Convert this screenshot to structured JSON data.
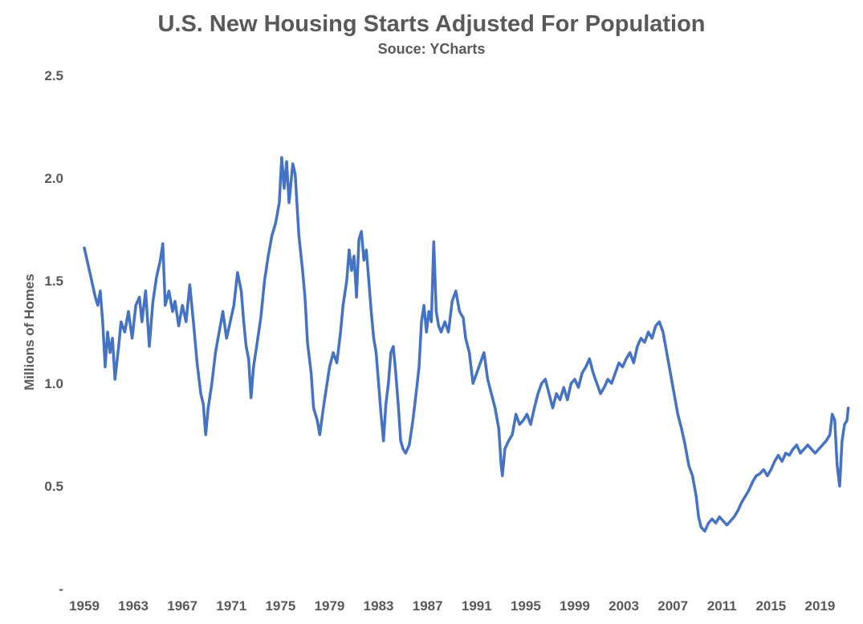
{
  "chart_data": {
    "type": "line",
    "title": "U.S. New Housing Starts Adjusted For Population",
    "subtitle": "Souce: YCharts",
    "xlabel": "",
    "ylabel": "Millions of Homes",
    "ylim": [
      0,
      2.5
    ],
    "xlim": [
      1959,
      2021
    ],
    "y_ticks": [
      0,
      0.5,
      1.0,
      1.5,
      2.0,
      2.5
    ],
    "y_tick_labels": [
      "-",
      "0.5",
      "1.0",
      "1.5",
      "2.0",
      "2.5"
    ],
    "x_ticks": [
      1959,
      1963,
      1967,
      1971,
      1975,
      1979,
      1983,
      1987,
      1991,
      1995,
      1999,
      2003,
      2007,
      2011,
      2015,
      2019
    ],
    "x_tick_labels": [
      "1959",
      "1963",
      "1967",
      "1971",
      "1975",
      "1979",
      "1983",
      "1987",
      "1991",
      "1995",
      "1999",
      "2003",
      "2007",
      "2011",
      "2015",
      "2019"
    ],
    "grid": false,
    "legend": "none",
    "color": "#4472C4",
    "series": [
      {
        "name": "",
        "points": [
          [
            1959.0,
            1.66
          ],
          [
            1959.3,
            1.58
          ],
          [
            1959.6,
            1.5
          ],
          [
            1959.9,
            1.42
          ],
          [
            1960.1,
            1.38
          ],
          [
            1960.3,
            1.45
          ],
          [
            1960.5,
            1.3
          ],
          [
            1960.7,
            1.08
          ],
          [
            1960.9,
            1.25
          ],
          [
            1961.1,
            1.15
          ],
          [
            1961.3,
            1.22
          ],
          [
            1961.5,
            1.02
          ],
          [
            1961.8,
            1.18
          ],
          [
            1962.0,
            1.3
          ],
          [
            1962.3,
            1.25
          ],
          [
            1962.6,
            1.35
          ],
          [
            1962.9,
            1.22
          ],
          [
            1963.2,
            1.38
          ],
          [
            1963.5,
            1.42
          ],
          [
            1963.7,
            1.3
          ],
          [
            1964.0,
            1.45
          ],
          [
            1964.3,
            1.18
          ],
          [
            1964.6,
            1.4
          ],
          [
            1964.9,
            1.52
          ],
          [
            1965.2,
            1.6
          ],
          [
            1965.4,
            1.68
          ],
          [
            1965.6,
            1.38
          ],
          [
            1965.9,
            1.45
          ],
          [
            1966.2,
            1.35
          ],
          [
            1966.4,
            1.4
          ],
          [
            1966.7,
            1.28
          ],
          [
            1967.0,
            1.38
          ],
          [
            1967.3,
            1.3
          ],
          [
            1967.6,
            1.48
          ],
          [
            1967.9,
            1.3
          ],
          [
            1968.2,
            1.1
          ],
          [
            1968.5,
            0.95
          ],
          [
            1968.7,
            0.9
          ],
          [
            1968.9,
            0.75
          ],
          [
            1969.1,
            0.88
          ],
          [
            1969.4,
            1.0
          ],
          [
            1969.7,
            1.15
          ],
          [
            1970.0,
            1.25
          ],
          [
            1970.3,
            1.35
          ],
          [
            1970.6,
            1.22
          ],
          [
            1970.9,
            1.3
          ],
          [
            1971.2,
            1.38
          ],
          [
            1971.5,
            1.54
          ],
          [
            1971.8,
            1.45
          ],
          [
            1972.0,
            1.3
          ],
          [
            1972.2,
            1.18
          ],
          [
            1972.4,
            1.12
          ],
          [
            1972.6,
            0.93
          ],
          [
            1972.8,
            1.08
          ],
          [
            1973.1,
            1.2
          ],
          [
            1973.4,
            1.32
          ],
          [
            1973.7,
            1.5
          ],
          [
            1974.0,
            1.62
          ],
          [
            1974.3,
            1.72
          ],
          [
            1974.6,
            1.78
          ],
          [
            1974.9,
            1.88
          ],
          [
            1975.1,
            2.1
          ],
          [
            1975.3,
            1.95
          ],
          [
            1975.5,
            2.08
          ],
          [
            1975.7,
            1.88
          ],
          [
            1976.0,
            2.07
          ],
          [
            1976.2,
            2.02
          ],
          [
            1976.5,
            1.72
          ],
          [
            1976.8,
            1.55
          ],
          [
            1977.0,
            1.42
          ],
          [
            1977.2,
            1.2
          ],
          [
            1977.5,
            1.05
          ],
          [
            1977.7,
            0.88
          ],
          [
            1978.0,
            0.82
          ],
          [
            1978.2,
            0.75
          ],
          [
            1978.5,
            0.88
          ],
          [
            1978.8,
            1.0
          ],
          [
            1979.0,
            1.08
          ],
          [
            1979.3,
            1.15
          ],
          [
            1979.6,
            1.1
          ],
          [
            1979.9,
            1.25
          ],
          [
            1980.1,
            1.38
          ],
          [
            1980.4,
            1.5
          ],
          [
            1980.6,
            1.65
          ],
          [
            1980.8,
            1.55
          ],
          [
            1981.0,
            1.62
          ],
          [
            1981.2,
            1.42
          ],
          [
            1981.4,
            1.7
          ],
          [
            1981.6,
            1.74
          ],
          [
            1981.8,
            1.6
          ],
          [
            1982.0,
            1.65
          ],
          [
            1982.2,
            1.5
          ],
          [
            1982.4,
            1.35
          ],
          [
            1982.6,
            1.22
          ],
          [
            1982.8,
            1.15
          ],
          [
            1983.0,
            1.0
          ],
          [
            1983.2,
            0.85
          ],
          [
            1983.4,
            0.72
          ],
          [
            1983.6,
            0.9
          ],
          [
            1983.8,
            1.0
          ],
          [
            1984.0,
            1.15
          ],
          [
            1984.2,
            1.18
          ],
          [
            1984.4,
            1.05
          ],
          [
            1984.6,
            0.9
          ],
          [
            1984.8,
            0.72
          ],
          [
            1985.0,
            0.68
          ],
          [
            1985.2,
            0.66
          ],
          [
            1985.5,
            0.7
          ],
          [
            1985.8,
            0.82
          ],
          [
            1986.0,
            0.92
          ],
          [
            1986.3,
            1.08
          ],
          [
            1986.5,
            1.3
          ],
          [
            1986.7,
            1.38
          ],
          [
            1986.9,
            1.25
          ],
          [
            1987.1,
            1.35
          ],
          [
            1987.3,
            1.3
          ],
          [
            1987.5,
            1.69
          ],
          [
            1987.7,
            1.35
          ],
          [
            1987.9,
            1.28
          ],
          [
            1988.1,
            1.25
          ],
          [
            1988.4,
            1.3
          ],
          [
            1988.7,
            1.25
          ],
          [
            1989.0,
            1.4
          ],
          [
            1989.3,
            1.45
          ],
          [
            1989.6,
            1.35
          ],
          [
            1989.9,
            1.32
          ],
          [
            1990.1,
            1.22
          ],
          [
            1990.4,
            1.15
          ],
          [
            1990.7,
            1.0
          ],
          [
            1991.0,
            1.05
          ],
          [
            1991.3,
            1.1
          ],
          [
            1991.6,
            1.15
          ],
          [
            1991.9,
            1.02
          ],
          [
            1992.2,
            0.95
          ],
          [
            1992.5,
            0.88
          ],
          [
            1992.8,
            0.78
          ],
          [
            1993.0,
            0.6
          ],
          [
            1993.1,
            0.55
          ],
          [
            1993.3,
            0.68
          ],
          [
            1993.6,
            0.72
          ],
          [
            1993.9,
            0.75
          ],
          [
            1994.2,
            0.85
          ],
          [
            1994.5,
            0.8
          ],
          [
            1994.8,
            0.82
          ],
          [
            1995.1,
            0.85
          ],
          [
            1995.4,
            0.8
          ],
          [
            1995.7,
            0.88
          ],
          [
            1996.0,
            0.95
          ],
          [
            1996.3,
            1.0
          ],
          [
            1996.6,
            1.02
          ],
          [
            1996.9,
            0.95
          ],
          [
            1997.2,
            0.88
          ],
          [
            1997.5,
            0.95
          ],
          [
            1997.8,
            0.92
          ],
          [
            1998.1,
            0.98
          ],
          [
            1998.4,
            0.92
          ],
          [
            1998.7,
            1.0
          ],
          [
            1999.0,
            1.02
          ],
          [
            1999.3,
            0.98
          ],
          [
            1999.6,
            1.05
          ],
          [
            1999.9,
            1.08
          ],
          [
            2000.2,
            1.12
          ],
          [
            2000.5,
            1.05
          ],
          [
            2000.8,
            1.0
          ],
          [
            2001.1,
            0.95
          ],
          [
            2001.4,
            0.98
          ],
          [
            2001.7,
            1.02
          ],
          [
            2002.0,
            1.0
          ],
          [
            2002.3,
            1.05
          ],
          [
            2002.6,
            1.1
          ],
          [
            2002.9,
            1.08
          ],
          [
            2003.2,
            1.12
          ],
          [
            2003.5,
            1.15
          ],
          [
            2003.8,
            1.1
          ],
          [
            2004.1,
            1.18
          ],
          [
            2004.4,
            1.22
          ],
          [
            2004.7,
            1.2
          ],
          [
            2005.0,
            1.25
          ],
          [
            2005.3,
            1.22
          ],
          [
            2005.6,
            1.28
          ],
          [
            2005.9,
            1.3
          ],
          [
            2006.2,
            1.25
          ],
          [
            2006.5,
            1.15
          ],
          [
            2006.8,
            1.05
          ],
          [
            2007.1,
            0.95
          ],
          [
            2007.4,
            0.85
          ],
          [
            2007.7,
            0.78
          ],
          [
            2008.0,
            0.7
          ],
          [
            2008.3,
            0.6
          ],
          [
            2008.6,
            0.55
          ],
          [
            2008.9,
            0.45
          ],
          [
            2009.1,
            0.35
          ],
          [
            2009.3,
            0.3
          ],
          [
            2009.6,
            0.28
          ],
          [
            2009.9,
            0.32
          ],
          [
            2010.2,
            0.34
          ],
          [
            2010.5,
            0.32
          ],
          [
            2010.8,
            0.35
          ],
          [
            2011.1,
            0.33
          ],
          [
            2011.4,
            0.31
          ],
          [
            2011.7,
            0.33
          ],
          [
            2012.0,
            0.35
          ],
          [
            2012.3,
            0.38
          ],
          [
            2012.6,
            0.42
          ],
          [
            2012.9,
            0.45
          ],
          [
            2013.2,
            0.48
          ],
          [
            2013.5,
            0.52
          ],
          [
            2013.8,
            0.55
          ],
          [
            2014.1,
            0.56
          ],
          [
            2014.4,
            0.58
          ],
          [
            2014.7,
            0.55
          ],
          [
            2015.0,
            0.58
          ],
          [
            2015.3,
            0.62
          ],
          [
            2015.6,
            0.65
          ],
          [
            2015.9,
            0.62
          ],
          [
            2016.2,
            0.66
          ],
          [
            2016.5,
            0.65
          ],
          [
            2016.8,
            0.68
          ],
          [
            2017.1,
            0.7
          ],
          [
            2017.4,
            0.66
          ],
          [
            2017.7,
            0.68
          ],
          [
            2018.0,
            0.7
          ],
          [
            2018.3,
            0.68
          ],
          [
            2018.6,
            0.66
          ],
          [
            2018.9,
            0.68
          ],
          [
            2019.2,
            0.7
          ],
          [
            2019.5,
            0.72
          ],
          [
            2019.8,
            0.75
          ],
          [
            2020.0,
            0.85
          ],
          [
            2020.2,
            0.82
          ],
          [
            2020.4,
            0.6
          ],
          [
            2020.6,
            0.5
          ],
          [
            2020.8,
            0.72
          ],
          [
            2021.0,
            0.8
          ],
          [
            2021.2,
            0.82
          ],
          [
            2021.3,
            0.88
          ]
        ]
      }
    ]
  }
}
